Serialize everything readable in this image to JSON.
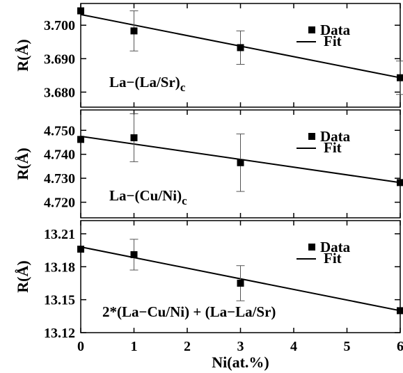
{
  "chart_data": [
    {
      "type": "scatter",
      "annotation": "La−(La/Sr)",
      "annotation_sub": "c",
      "ylabel": "R(Å)",
      "xlim": [
        0,
        6
      ],
      "ylim": [
        3.6755,
        3.7065
      ],
      "yticks": [
        "3.700",
        "3.690",
        "3.680"
      ],
      "ytick_values": [
        3.7,
        3.69,
        3.68
      ],
      "series": [
        {
          "name": "Data",
          "x": [
            0,
            1,
            3,
            6
          ],
          "y": [
            3.7043,
            3.6983,
            3.6933,
            3.6843
          ],
          "yerr": [
            0.0,
            0.006,
            0.005,
            0.005
          ]
        },
        {
          "name": "Fit",
          "x": [
            0,
            6
          ],
          "y": [
            3.7032,
            3.6843
          ]
        }
      ],
      "legend": [
        "Data",
        "Fit"
      ],
      "legend_position": "top-right"
    },
    {
      "type": "scatter",
      "annotation": "La−(Cu/Ni)",
      "annotation_sub": "c",
      "ylabel": "R(Å)",
      "xlim": [
        0,
        6
      ],
      "ylim": [
        4.7135,
        4.7585
      ],
      "yticks": [
        "4.750",
        "4.740",
        "4.730",
        "4.720"
      ],
      "ytick_values": [
        4.75,
        4.74,
        4.73,
        4.72
      ],
      "series": [
        {
          "name": "Data",
          "x": [
            0,
            1,
            3,
            6
          ],
          "y": [
            4.7462,
            4.7469,
            4.7365,
            4.7282
          ],
          "yerr": [
            0.0,
            0.01,
            0.012,
            0.0
          ]
        },
        {
          "name": "Fit",
          "x": [
            0,
            6
          ],
          "y": [
            4.7475,
            4.7282
          ]
        }
      ],
      "legend": [
        "Data",
        "Fit"
      ],
      "legend_position": "top-right"
    },
    {
      "type": "scatter",
      "annotation": "2*(La−Cu/Ni) + (La−La/Sr)",
      "annotation_sub": "",
      "ylabel": "R(Å)",
      "xlabel": "Ni(at.%)",
      "xticks": [
        "0",
        "1",
        "2",
        "3",
        "4",
        "5",
        "6"
      ],
      "xlim": [
        0,
        6
      ],
      "ylim": [
        13.12,
        13.222
      ],
      "yticks": [
        "13.21",
        "13.18",
        "13.15",
        "13.12"
      ],
      "ytick_values": [
        13.21,
        13.18,
        13.15,
        13.12
      ],
      "series": [
        {
          "name": "Data",
          "x": [
            0,
            1,
            3,
            6
          ],
          "y": [
            13.196,
            13.191,
            13.165,
            13.14
          ],
          "yerr": [
            0.0,
            0.014,
            0.016,
            0.0
          ]
        },
        {
          "name": "Fit",
          "x": [
            0,
            6
          ],
          "y": [
            13.198,
            13.14
          ]
        }
      ],
      "legend": [
        "Data",
        "Fit"
      ],
      "legend_position": "top-right"
    }
  ]
}
